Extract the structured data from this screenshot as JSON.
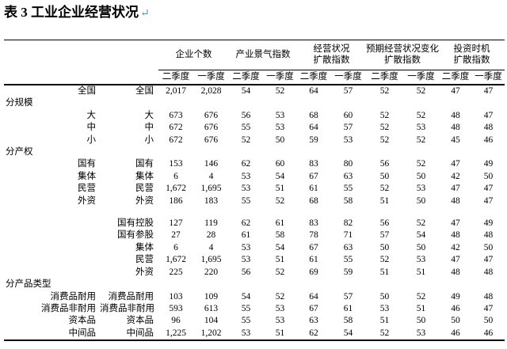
{
  "page": {
    "title": "表 3 工业企业经营状况",
    "return_mark": "↵",
    "return_mark_color": "#3b9fd8"
  },
  "table": {
    "groups": [
      {
        "lines": [
          "企业个数"
        ]
      },
      {
        "lines": [
          "产业景气指数"
        ]
      },
      {
        "lines": [
          "经营状况",
          "扩散指数"
        ]
      },
      {
        "lines": [
          "预期经营状况变化",
          "扩散指数"
        ]
      },
      {
        "lines": [
          "投资时机",
          "扩散指数"
        ]
      }
    ],
    "quarters": [
      "二季度",
      "一季度"
    ],
    "rows": [
      {
        "type": "data",
        "label1": "全国",
        "label2": "全国",
        "values": [
          "2,017",
          "2,028",
          "54",
          "52",
          "64",
          "57",
          "52",
          "52",
          "47",
          "47"
        ]
      },
      {
        "type": "section",
        "label": "分规模"
      },
      {
        "type": "data",
        "label1": "大",
        "label2": "大",
        "values": [
          "673",
          "676",
          "56",
          "53",
          "68",
          "60",
          "52",
          "52",
          "48",
          "47"
        ]
      },
      {
        "type": "data",
        "label1": "中",
        "label2": "中",
        "values": [
          "672",
          "676",
          "55",
          "53",
          "64",
          "57",
          "52",
          "53",
          "48",
          "48"
        ]
      },
      {
        "type": "data",
        "label1": "小",
        "label2": "小",
        "values": [
          "672",
          "676",
          "52",
          "50",
          "59",
          "53",
          "52",
          "52",
          "45",
          "46"
        ]
      },
      {
        "type": "section",
        "label": "分产权"
      },
      {
        "type": "data",
        "label1": "国有",
        "label2": "国有",
        "values": [
          "153",
          "146",
          "62",
          "60",
          "83",
          "80",
          "56",
          "52",
          "47",
          "49"
        ]
      },
      {
        "type": "data",
        "label1": "集体",
        "label2": "集体",
        "values": [
          "6",
          "4",
          "53",
          "54",
          "67",
          "63",
          "50",
          "50",
          "42",
          "50"
        ]
      },
      {
        "type": "data",
        "label1": "民营",
        "label2": "民营",
        "values": [
          "1,672",
          "1,695",
          "53",
          "51",
          "61",
          "55",
          "52",
          "53",
          "47",
          "47"
        ]
      },
      {
        "type": "data",
        "label1": "外资",
        "label2": "外资",
        "values": [
          "186",
          "183",
          "55",
          "52",
          "68",
          "58",
          "51",
          "50",
          "48",
          "47"
        ]
      },
      {
        "type": "blank"
      },
      {
        "type": "data",
        "label1": "",
        "label2": "国有控股",
        "values": [
          "127",
          "119",
          "62",
          "61",
          "83",
          "82",
          "56",
          "52",
          "47",
          "49"
        ]
      },
      {
        "type": "data",
        "label1": "",
        "label2": "国有参股",
        "values": [
          "27",
          "28",
          "61",
          "58",
          "78",
          "71",
          "57",
          "54",
          "48",
          "48"
        ]
      },
      {
        "type": "data",
        "label1": "",
        "label2": "集体",
        "values": [
          "6",
          "4",
          "53",
          "54",
          "67",
          "63",
          "50",
          "50",
          "42",
          "50"
        ]
      },
      {
        "type": "data",
        "label1": "",
        "label2": "民营",
        "values": [
          "1,672",
          "1,695",
          "53",
          "51",
          "61",
          "55",
          "52",
          "53",
          "47",
          "47"
        ]
      },
      {
        "type": "data",
        "label1": "",
        "label2": "外资",
        "values": [
          "225",
          "220",
          "56",
          "52",
          "69",
          "59",
          "51",
          "51",
          "48",
          "48"
        ]
      },
      {
        "type": "section",
        "label": "分产品类型"
      },
      {
        "type": "data",
        "label1": "消费品耐用",
        "label2": "消费品耐用",
        "values": [
          "103",
          "109",
          "54",
          "52",
          "64",
          "57",
          "50",
          "52",
          "49",
          "48"
        ]
      },
      {
        "type": "data",
        "label1": "消费品非耐用",
        "label2": "消费品非耐用",
        "values": [
          "593",
          "613",
          "55",
          "53",
          "67",
          "61",
          "53",
          "51",
          "46",
          "47"
        ]
      },
      {
        "type": "data",
        "label1": "资本品",
        "label2": "资本品",
        "values": [
          "96",
          "104",
          "55",
          "53",
          "63",
          "58",
          "51",
          "50",
          "50",
          "50"
        ]
      },
      {
        "type": "data",
        "label1": "中间品",
        "label2": "中间品",
        "values": [
          "1,225",
          "1,202",
          "53",
          "51",
          "62",
          "54",
          "52",
          "53",
          "46",
          "46"
        ]
      }
    ]
  }
}
